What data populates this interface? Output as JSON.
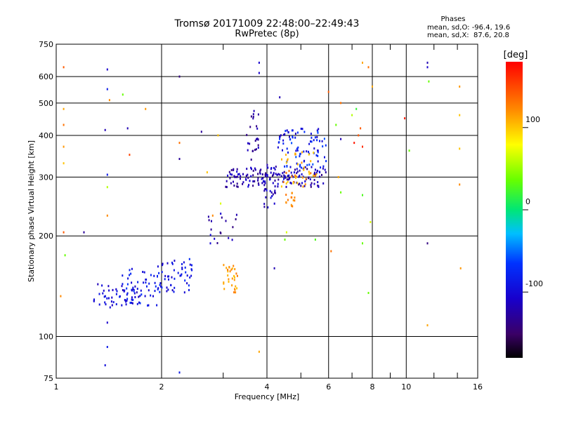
{
  "chart_data": {
    "type": "scatter",
    "title": "Tromsø 20171009 22:48:00–22:49:43",
    "subtitle": "RwPretec (8p)",
    "xlabel": "Frequency [MHz]",
    "ylabel": "Stationary phase Virtual Height [km]",
    "x_scale": "log",
    "y_scale": "log",
    "xlim": [
      1,
      16
    ],
    "ylim": [
      75,
      750
    ],
    "x_ticks": [
      1,
      2,
      4,
      6,
      8,
      10,
      16
    ],
    "x_tick_labels": [
      "1",
      "2",
      "4",
      "6",
      "8",
      "10",
      "16"
    ],
    "x_minor_ticks": [
      3,
      5,
      7,
      9,
      12,
      14
    ],
    "y_ticks": [
      75,
      100,
      200,
      300,
      400,
      500,
      600,
      750
    ],
    "y_tick_labels": [
      "75",
      "100",
      "200",
      "300",
      "400",
      "500",
      "600",
      "750"
    ],
    "grid": true,
    "colorbar": {
      "label": "[deg]",
      "range": [
        -180,
        180
      ],
      "ticks": [
        100,
        0,
        -100
      ],
      "tick_labels": [
        "100",
        "0",
        "-100"
      ]
    },
    "phase_stats": {
      "title": "Phases",
      "line1": "mean, sd,O: -96.4, 19.6",
      "line2": "mean, sd,X:  87.6, 20.8"
    },
    "clusters": [
      {
        "x": [
          1.28,
          1.75
        ],
        "y": [
          122,
          145
        ],
        "phase": [
          -120,
          -90
        ],
        "n": 55
      },
      {
        "x": [
          1.5,
          1.95
        ],
        "y": [
          123,
          160
        ],
        "phase": [
          -110,
          -70
        ],
        "n": 45
      },
      {
        "x": [
          1.95,
          2.45
        ],
        "y": [
          135,
          172
        ],
        "phase": [
          -115,
          -75
        ],
        "n": 55
      },
      {
        "x": [
          3.0,
          3.3
        ],
        "y": [
          135,
          165
        ],
        "phase": [
          100,
          130
        ],
        "n": 30
      },
      {
        "x": [
          3.05,
          5.9
        ],
        "y": [
          280,
          320
        ],
        "phase": [
          -140,
          -100
        ],
        "n": 150
      },
      {
        "x": [
          3.5,
          3.8
        ],
        "y": [
          330,
          480
        ],
        "phase": [
          -140,
          -110
        ],
        "n": 25
      },
      {
        "x": [
          3.9,
          4.3
        ],
        "y": [
          240,
          330
        ],
        "phase": [
          -130,
          -100
        ],
        "n": 35
      },
      {
        "x": [
          4.3,
          5.9
        ],
        "y": [
          320,
          420
        ],
        "phase": [
          -120,
          -60
        ],
        "n": 90
      },
      {
        "x": [
          4.4,
          5.6
        ],
        "y": [
          280,
          360
        ],
        "phase": [
          90,
          135
        ],
        "n": 40
      },
      {
        "x": [
          4.5,
          4.8
        ],
        "y": [
          245,
          270
        ],
        "phase": [
          110,
          130
        ],
        "n": 14
      },
      {
        "x": [
          2.7,
          3.3
        ],
        "y": [
          190,
          235
        ],
        "phase": [
          -140,
          -100
        ],
        "n": 18
      }
    ],
    "points": [
      {
        "x": 1.05,
        "y": 640,
        "phase": 140
      },
      {
        "x": 1.05,
        "y": 480,
        "phase": 110
      },
      {
        "x": 1.05,
        "y": 430,
        "phase": 130
      },
      {
        "x": 1.05,
        "y": 370,
        "phase": 115
      },
      {
        "x": 1.05,
        "y": 330,
        "phase": 100
      },
      {
        "x": 1.05,
        "y": 205,
        "phase": 140
      },
      {
        "x": 1.06,
        "y": 175,
        "phase": 40
      },
      {
        "x": 1.03,
        "y": 132,
        "phase": 120
      },
      {
        "x": 1.2,
        "y": 205,
        "phase": -130
      },
      {
        "x": 1.4,
        "y": 630,
        "phase": -110
      },
      {
        "x": 1.4,
        "y": 550,
        "phase": -90
      },
      {
        "x": 1.42,
        "y": 510,
        "phase": 120
      },
      {
        "x": 1.38,
        "y": 415,
        "phase": -120
      },
      {
        "x": 1.4,
        "y": 305,
        "phase": -90
      },
      {
        "x": 1.4,
        "y": 280,
        "phase": 60
      },
      {
        "x": 1.4,
        "y": 230,
        "phase": 120
      },
      {
        "x": 1.4,
        "y": 110,
        "phase": -110
      },
      {
        "x": 1.4,
        "y": 93,
        "phase": -90
      },
      {
        "x": 1.38,
        "y": 82,
        "phase": -100
      },
      {
        "x": 1.55,
        "y": 530,
        "phase": 40
      },
      {
        "x": 1.6,
        "y": 420,
        "phase": -120
      },
      {
        "x": 1.62,
        "y": 350,
        "phase": 150
      },
      {
        "x": 1.8,
        "y": 480,
        "phase": 115
      },
      {
        "x": 2.25,
        "y": 600,
        "phase": -140
      },
      {
        "x": 2.25,
        "y": 380,
        "phase": 130
      },
      {
        "x": 2.25,
        "y": 340,
        "phase": -130
      },
      {
        "x": 2.25,
        "y": 78,
        "phase": -90
      },
      {
        "x": 2.6,
        "y": 410,
        "phase": -130
      },
      {
        "x": 2.7,
        "y": 310,
        "phase": 100
      },
      {
        "x": 2.9,
        "y": 400,
        "phase": 100
      },
      {
        "x": 2.95,
        "y": 250,
        "phase": 70
      },
      {
        "x": 2.8,
        "y": 230,
        "phase": 120
      },
      {
        "x": 3.8,
        "y": 660,
        "phase": -110
      },
      {
        "x": 3.8,
        "y": 615,
        "phase": -110
      },
      {
        "x": 3.8,
        "y": 90,
        "phase": 110
      },
      {
        "x": 4.2,
        "y": 160,
        "phase": -120
      },
      {
        "x": 4.35,
        "y": 520,
        "phase": -120
      },
      {
        "x": 4.5,
        "y": 195,
        "phase": 40
      },
      {
        "x": 4.55,
        "y": 205,
        "phase": 70
      },
      {
        "x": 5.5,
        "y": 195,
        "phase": 30
      },
      {
        "x": 6.0,
        "y": 540,
        "phase": 140
      },
      {
        "x": 6.1,
        "y": 180,
        "phase": 130
      },
      {
        "x": 6.3,
        "y": 430,
        "phase": 40
      },
      {
        "x": 6.5,
        "y": 270,
        "phase": 40
      },
      {
        "x": 6.4,
        "y": 300,
        "phase": 110
      },
      {
        "x": 6.5,
        "y": 390,
        "phase": -120
      },
      {
        "x": 6.5,
        "y": 500,
        "phase": 130
      },
      {
        "x": 7.0,
        "y": 460,
        "phase": 60
      },
      {
        "x": 7.2,
        "y": 480,
        "phase": 20
      },
      {
        "x": 7.3,
        "y": 400,
        "phase": 140
      },
      {
        "x": 7.4,
        "y": 420,
        "phase": 140
      },
      {
        "x": 7.5,
        "y": 370,
        "phase": 160
      },
      {
        "x": 7.5,
        "y": 265,
        "phase": 30
      },
      {
        "x": 7.5,
        "y": 190,
        "phase": 40
      },
      {
        "x": 7.5,
        "y": 660,
        "phase": 110
      },
      {
        "x": 7.8,
        "y": 640,
        "phase": 130
      },
      {
        "x": 7.9,
        "y": 220,
        "phase": 70
      },
      {
        "x": 7.8,
        "y": 135,
        "phase": 40
      },
      {
        "x": 8.0,
        "y": 560,
        "phase": 110
      },
      {
        "x": 7.1,
        "y": 380,
        "phase": 170
      },
      {
        "x": 9.9,
        "y": 450,
        "phase": 170
      },
      {
        "x": 10.2,
        "y": 360,
        "phase": 40
      },
      {
        "x": 11.5,
        "y": 660,
        "phase": -120
      },
      {
        "x": 11.5,
        "y": 640,
        "phase": -110
      },
      {
        "x": 11.6,
        "y": 580,
        "phase": 40
      },
      {
        "x": 11.5,
        "y": 190,
        "phase": -140
      },
      {
        "x": 11.5,
        "y": 108,
        "phase": 110
      },
      {
        "x": 14.2,
        "y": 560,
        "phase": 115
      },
      {
        "x": 14.2,
        "y": 460,
        "phase": 100
      },
      {
        "x": 14.2,
        "y": 365,
        "phase": 100
      },
      {
        "x": 14.2,
        "y": 285,
        "phase": 120
      },
      {
        "x": 14.3,
        "y": 160,
        "phase": 115
      }
    ]
  }
}
